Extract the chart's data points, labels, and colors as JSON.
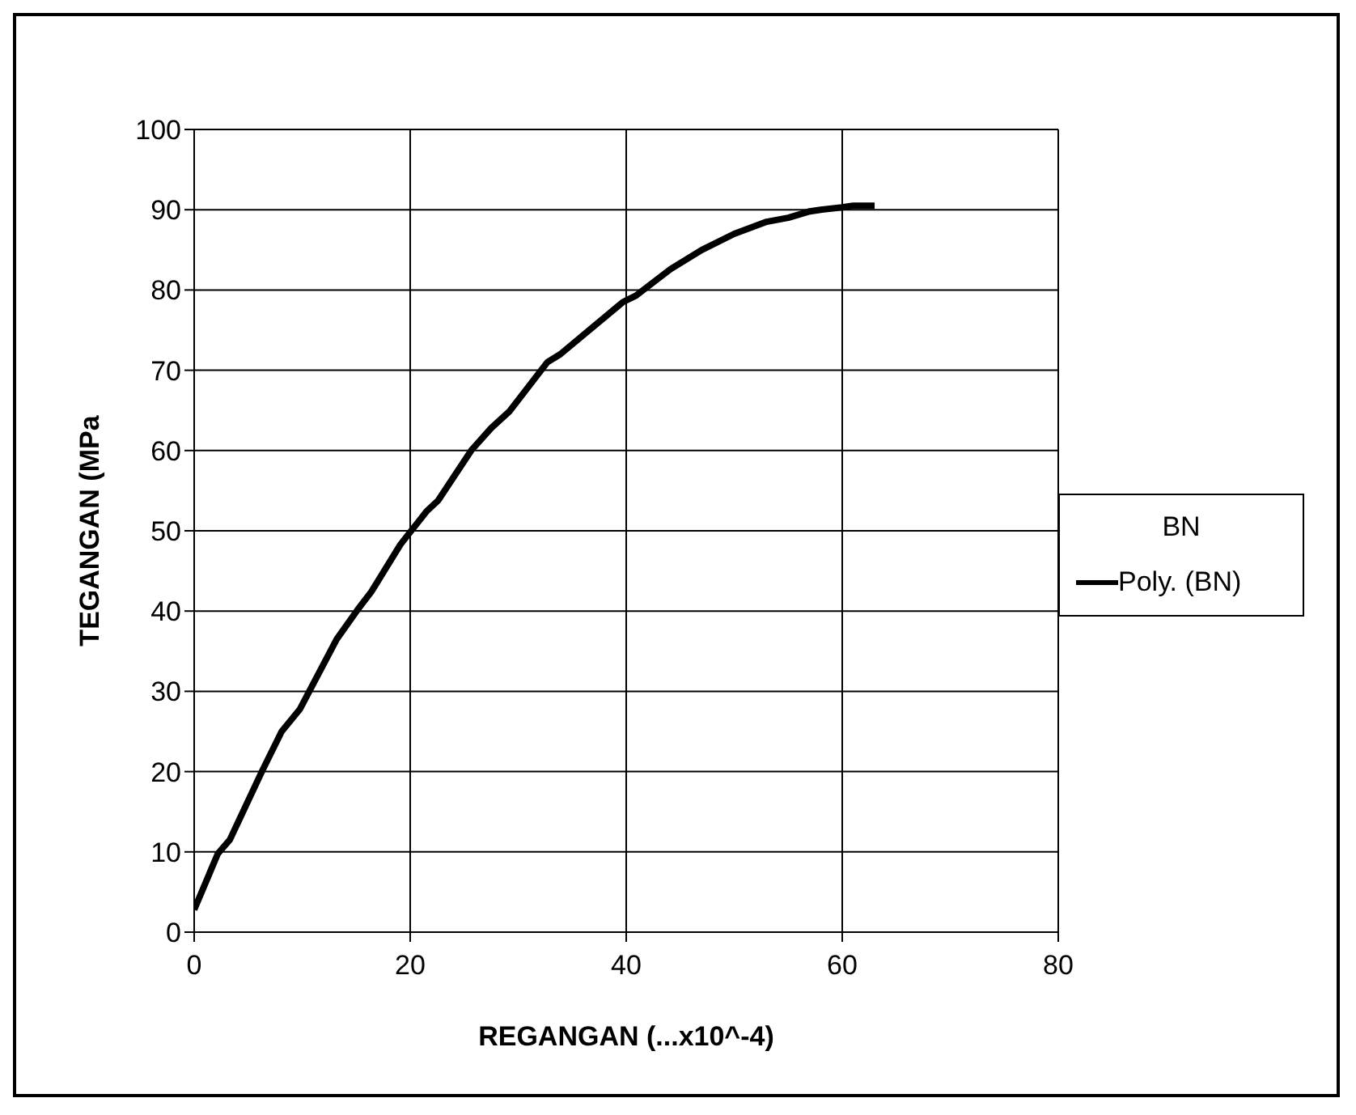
{
  "chart_data": {
    "type": "line",
    "xlabel": "REGANGAN (...x10^-4)",
    "ylabel": "TEGANGAN (MPa",
    "legend_title": "BN",
    "legend": "right",
    "grid": true,
    "marker": "none",
    "line_style": "solid",
    "xlim": [
      0,
      80
    ],
    "xticks": [
      0,
      20,
      40,
      60,
      80
    ],
    "ylim": [
      0,
      100
    ],
    "yticks": [
      0,
      10,
      20,
      30,
      40,
      50,
      60,
      70,
      80,
      90,
      100
    ],
    "series": [
      {
        "name": "Poly. (BN)",
        "color": "#000000",
        "x": [
          0,
          2.2,
          3.3,
          6.3,
          8.1,
          9.8,
          13.2,
          15.2,
          16.4,
          19.1,
          21.5,
          22.6,
          25.7,
          27.5,
          29.2,
          32.7,
          33.9,
          39.7,
          40.9,
          44.1,
          47,
          50,
          53,
          55,
          57,
          58,
          60,
          61,
          63
        ],
        "values": [
          2.8,
          9.8,
          11.5,
          20.1,
          25,
          27.8,
          36.5,
          40.3,
          42.4,
          48.3,
          52.4,
          53.8,
          60.1,
          62.8,
          64.9,
          71,
          72,
          78.5,
          79.3,
          82.6,
          85,
          87,
          88.5,
          89,
          89.8,
          90,
          90.3,
          90.5,
          90.5
        ]
      }
    ]
  }
}
